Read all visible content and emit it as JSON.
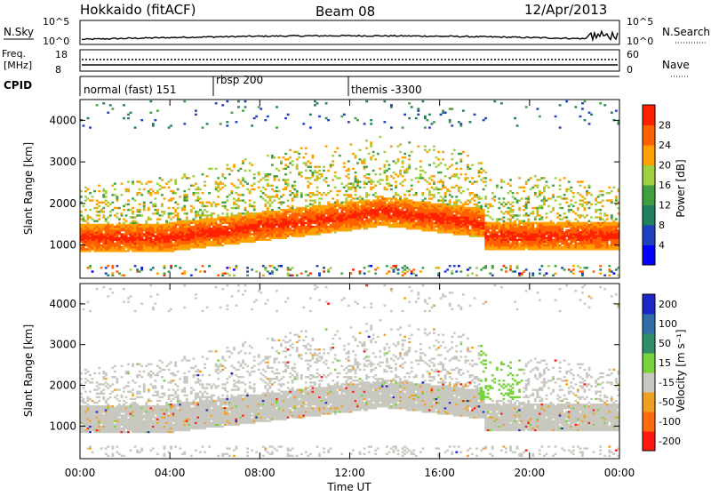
{
  "header": {
    "station": "Hokkaido (fitACF)",
    "beam": "Beam 08",
    "date": "12/Apr/2013"
  },
  "summary_panels": {
    "nsky": {
      "label": "N.Sky",
      "ticks": [
        "10^5",
        "10^0"
      ],
      "right_label": "N.Search",
      "right_ticks": [
        "10^5",
        "10^0"
      ]
    },
    "freq": {
      "label_line1": "Freq.",
      "label_line2": "[MHz]",
      "ticks": [
        "18",
        "8"
      ],
      "right_label": "Nave",
      "right_ticks": [
        "60",
        "0"
      ]
    },
    "cpid": {
      "label": "CPID",
      "segments": [
        "normal (fast) 151",
        "rbsp 200",
        "themis -3300"
      ]
    }
  },
  "chart_data": [
    {
      "type": "heatmap",
      "title": "",
      "xlabel": "",
      "ylabel": "Slant Range [km]",
      "x_ticks": [
        "00:00",
        "04:00",
        "08:00",
        "12:00",
        "16:00",
        "20:00",
        "00:00"
      ],
      "y_ticks": [
        "1000",
        "2000",
        "3000",
        "4000"
      ],
      "ylim": [
        200,
        4500
      ],
      "colorbar": {
        "label": "Power [dB]",
        "ticks": [
          "4",
          "8",
          "12",
          "16",
          "20",
          "24",
          "28"
        ],
        "range": [
          0,
          32
        ],
        "colors": [
          "#0000ff",
          "#2040c0",
          "#208060",
          "#40a040",
          "#a0d040",
          "#ffa000",
          "#ff6000",
          "#ff2000"
        ]
      }
    },
    {
      "type": "heatmap",
      "title": "",
      "xlabel": "Time UT",
      "ylabel": "Slant Range [km]",
      "x_ticks": [
        "00:00",
        "04:00",
        "08:00",
        "12:00",
        "16:00",
        "20:00",
        "00:00"
      ],
      "y_ticks": [
        "1000",
        "2000",
        "3000",
        "4000"
      ],
      "ylim": [
        200,
        4500
      ],
      "colorbar": {
        "label": "Velocity [m s⁻¹]",
        "ticks": [
          "200",
          "100",
          "50",
          "15",
          "-15",
          "-50",
          "-100",
          "-200"
        ],
        "colors": [
          "#1a28c8",
          "#2f6ea8",
          "#2f8f6a",
          "#77d33a",
          "#c8c8c0",
          "#f0a020",
          "#ff6a10",
          "#ff1a10"
        ]
      }
    }
  ]
}
